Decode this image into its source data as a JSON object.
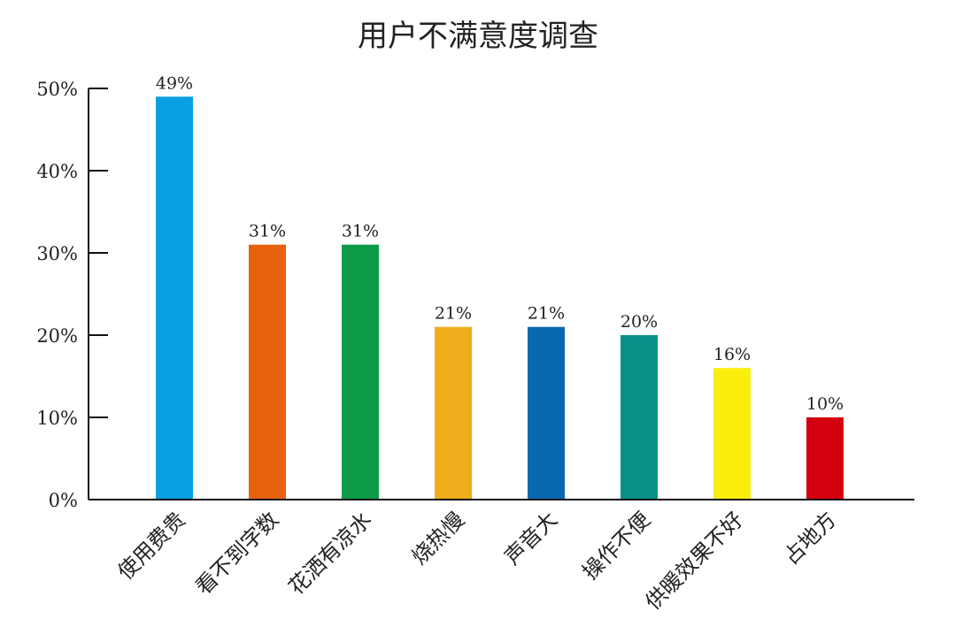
{
  "chart_data": {
    "type": "bar",
    "title": "用户不满意度调查",
    "xlabel": "",
    "ylabel": "",
    "categories": [
      "使用费贵",
      "看不到字数",
      "花洒有凉水",
      "烧热慢",
      "声音大",
      "操作不便",
      "供暖效果不好",
      "占地方"
    ],
    "values": [
      49,
      31,
      31,
      21,
      21,
      20,
      16,
      10
    ],
    "value_labels": [
      "49%",
      "31%",
      "31%",
      "21%",
      "21%",
      "20%",
      "16%",
      "10%"
    ],
    "colors": [
      "#0a9fe0",
      "#e8620e",
      "#0a9a48",
      "#eeae1c",
      "#0a68b0",
      "#079189",
      "#fbee0e",
      "#d4000f"
    ],
    "ylim": [
      0,
      50
    ],
    "yticks": [
      0,
      10,
      20,
      30,
      40,
      50
    ],
    "ytick_labels": [
      "0%",
      "10%",
      "20%",
      "30%",
      "40%",
      "50%"
    ],
    "grid": false,
    "legend": "none"
  }
}
